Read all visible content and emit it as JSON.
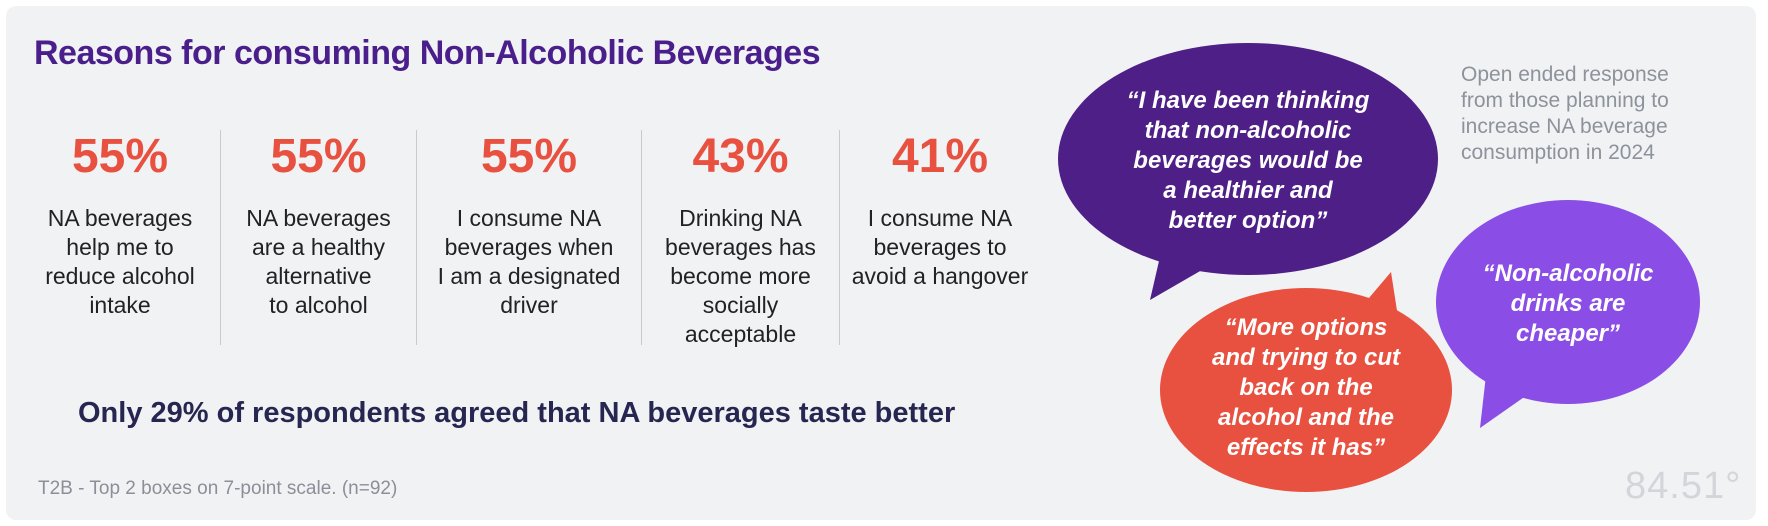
{
  "chart_data": {
    "type": "table",
    "title": "Reasons for consuming Non-Alcoholic Beverages",
    "categories": [
      "NA beverages help me to reduce alcohol intake",
      "NA beverages are a healthy alternative to alcohol",
      "I consume NA beverages when I am a designated driver",
      "Drinking NA beverages has become more socially acceptable",
      "I consume NA beverages to avoid a hangover"
    ],
    "values": [
      55,
      55,
      55,
      43,
      41
    ],
    "value_labels": [
      "55%",
      "55%",
      "55%",
      "43%",
      "41%"
    ],
    "highlight": "Only 29% of respondents agreed that NA beverages taste better",
    "highlight_value": 29,
    "footnote": "T2B - Top 2 boxes on 7-point scale. (n=92)"
  },
  "labels": [
    [
      "NA beverages",
      "help me to",
      "reduce alcohol",
      "intake"
    ],
    [
      "NA beverages",
      "are a healthy",
      "alternative",
      "to alcohol"
    ],
    [
      "I consume NA",
      "beverages when",
      "I am a designated",
      "driver"
    ],
    [
      "Drinking NA",
      "beverages has",
      "become more",
      "socially",
      "acceptable"
    ],
    [
      "I consume NA",
      "beverages to",
      "avoid a hangover"
    ]
  ],
  "side_note": "Open ended response from those planning to increase NA beverage consumption in 2024",
  "quotes": [
    {
      "lines": [
        "“I have been thinking",
        "that non-alcoholic",
        "beverages would be",
        "a healthier and",
        "better option”"
      ],
      "color": "#4e1f86"
    },
    {
      "lines": [
        "“Non-alcoholic",
        "drinks are",
        "cheaper”"
      ],
      "color": "#8a4ee6"
    },
    {
      "lines": [
        "“More options",
        "and trying to cut",
        "back on the",
        "alcohol and the",
        "effects it has”"
      ],
      "color": "#e8503f"
    }
  ],
  "logo": "84.51°",
  "colors": {
    "title": "#4a1f8c",
    "accent": "#e8503f",
    "background": "#f1f2f4"
  }
}
